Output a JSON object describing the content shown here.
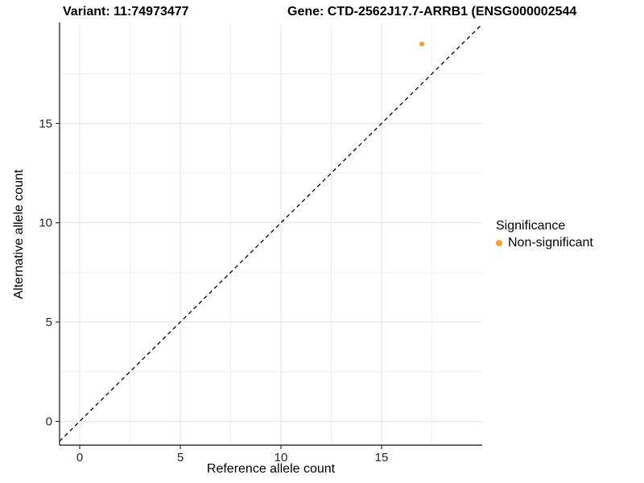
{
  "header": {
    "variant_title": "Variant: 11:74973477",
    "gene_title": "Gene: CTD-2562J17.7-ARRB1 (ENSG000002544"
  },
  "chart_data": {
    "type": "scatter",
    "title": "Variant: 11:74973477   Gene: CTD-2562J17.7-ARRB1 (ENSG000002544",
    "xlabel": "Reference allele count",
    "ylabel": "Alternative allele count",
    "xlim": [
      -1,
      20
    ],
    "ylim": [
      -1.2,
      20
    ],
    "xticks": [
      0,
      5,
      10,
      15
    ],
    "yticks": [
      0,
      5,
      10,
      15
    ],
    "x_minor_gridlines": [
      2.5,
      7.5,
      12.5,
      17.5
    ],
    "y_minor_gridlines": [
      2.5,
      7.5,
      12.5,
      17.5
    ],
    "grid": "on",
    "reference_line": {
      "type": "identity",
      "equation": "y = x",
      "style": "dashed",
      "color": "#000000"
    },
    "series": [
      {
        "name": "Non-significant",
        "color": "#F9A032",
        "points": [
          {
            "x": 17,
            "y": 19
          }
        ]
      }
    ],
    "legend": {
      "title": "Significance",
      "position": "right",
      "items": [
        {
          "label": "Non-significant",
          "color": "#F9A032"
        }
      ]
    },
    "colors": {
      "axis_line": "#333333",
      "tick_label": "#262626",
      "grid_major": "#e3e3e3",
      "grid_minor": "#f0f0f0",
      "background": "#ffffff"
    }
  }
}
